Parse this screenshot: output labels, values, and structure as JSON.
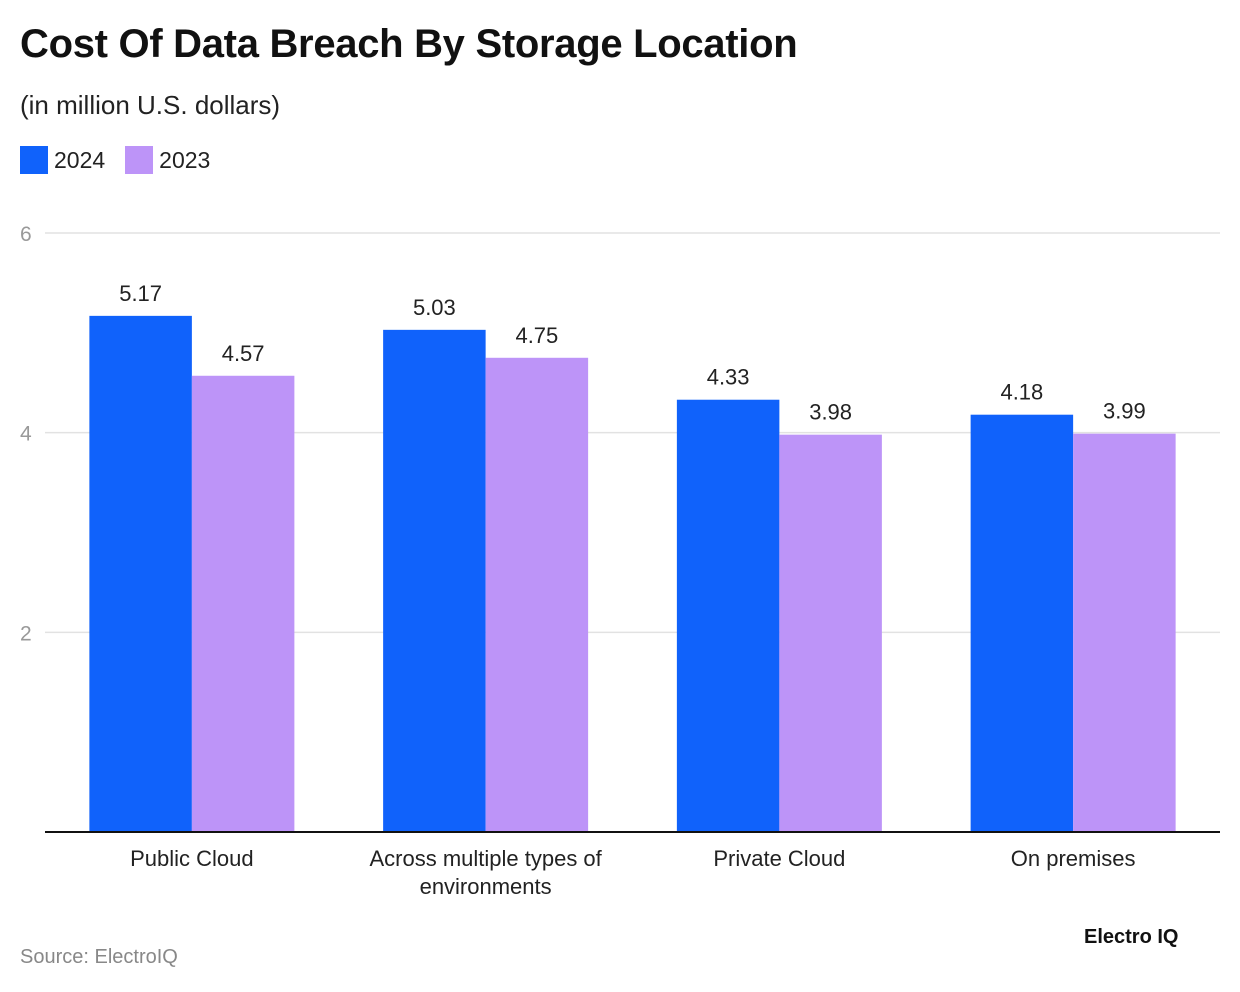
{
  "chart_data": {
    "type": "bar",
    "title": "Cost Of Data Breach By Storage Location",
    "subtitle": "(in million U.S. dollars)",
    "categories": [
      "Public Cloud",
      "Across multiple types of environments",
      "Private Cloud",
      "On premises"
    ],
    "series": [
      {
        "name": "2024",
        "color": "#1062fb",
        "values": [
          5.17,
          5.03,
          4.33,
          4.18
        ]
      },
      {
        "name": "2023",
        "color": "#bd94f8",
        "values": [
          4.57,
          4.75,
          3.98,
          3.99
        ]
      }
    ],
    "ylim": [
      0,
      6
    ],
    "yticks": [
      2,
      4,
      6
    ],
    "grid": true,
    "legend": "top-left",
    "xlabel": "",
    "ylabel": ""
  },
  "footer": {
    "source": "Source: ElectroIQ",
    "logo": "Electro IQ"
  }
}
